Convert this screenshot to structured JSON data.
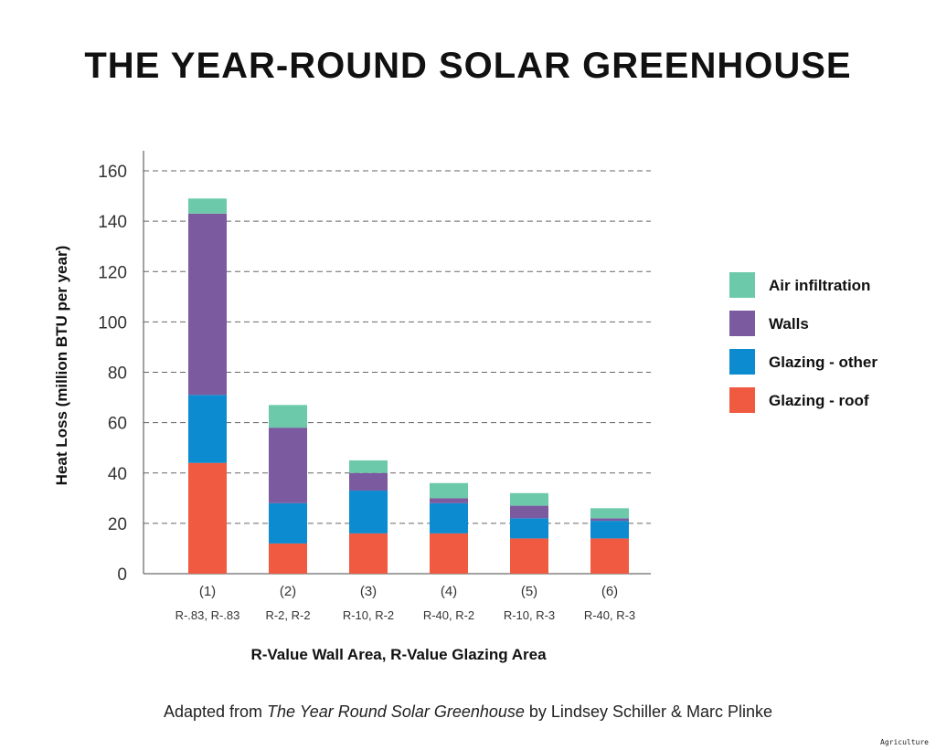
{
  "chart_data": {
    "type": "bar",
    "stacked": true,
    "title": "THE YEAR-ROUND SOLAR GREENHOUSE",
    "xlabel": "R-Value Wall Area, R-Value Glazing Area",
    "ylabel": "Heat Loss (million BTU per year)",
    "ylim": [
      0,
      160
    ],
    "yticks": [
      0,
      20,
      40,
      60,
      80,
      100,
      120,
      140,
      160
    ],
    "grid": true,
    "categories": [
      "(1)",
      "(2)",
      "(3)",
      "(4)",
      "(5)",
      "(6)"
    ],
    "category_sublabels": [
      "R-.83, R-.83",
      "R-2, R-2",
      "R-10, R-2",
      "R-40, R-2",
      "R-10, R-3",
      "R-40, R-3"
    ],
    "series": [
      {
        "name": "Glazing - roof",
        "color": "#f05a40",
        "values": [
          44,
          12,
          16,
          16,
          14,
          14
        ]
      },
      {
        "name": "Glazing - other",
        "color": "#0c8bd0",
        "values": [
          27,
          16,
          17,
          12,
          8,
          7
        ]
      },
      {
        "name": "Walls",
        "color": "#7b5aa0",
        "values": [
          72,
          30,
          7,
          2,
          5,
          1
        ]
      },
      {
        "name": "Air infiltration",
        "color": "#6ccaaa",
        "values": [
          6,
          9,
          5,
          6,
          5,
          4
        ]
      }
    ],
    "legend_order": [
      "Air infiltration",
      "Walls",
      "Glazing - other",
      "Glazing - roof"
    ],
    "legend_position": "right"
  },
  "caption": {
    "prefix": "Adapted from ",
    "book": "The Year Round Solar Greenhouse",
    "suffix": " by Lindsey Schiller & Marc Plinke"
  },
  "corner_tag": "Agriculture"
}
